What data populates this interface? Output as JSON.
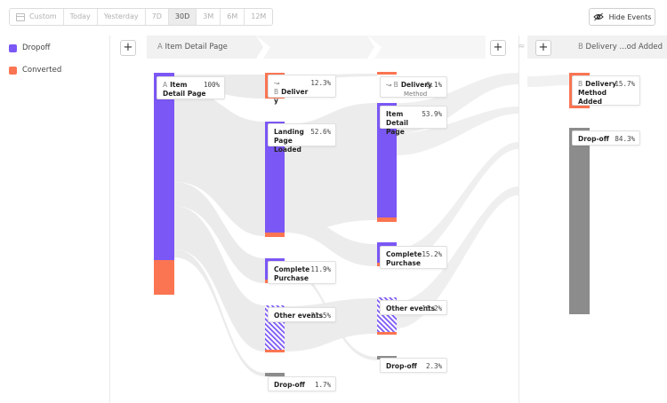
{
  "toolbar": {
    "range_buttons": [
      "Custom",
      "Today",
      "Yesterday",
      "7D",
      "30D",
      "3M",
      "6M",
      "12M"
    ],
    "active_range": "30D",
    "hide_events_label": "Hide Events"
  },
  "legend": [
    {
      "label": "Dropoff",
      "color": "#7b57f5"
    },
    {
      "label": "Converted",
      "color": "#fb7552"
    }
  ],
  "steps": {
    "step1_prefix": "A",
    "step1_label": "Item Detail Page",
    "step2_prefix": "B",
    "step2_label": "Delivery ...od Added"
  },
  "colors": {
    "dropoff": "#7b57f5",
    "converted": "#fb7552",
    "flow": "#e6e6e6",
    "dropoff_gray": "#8c8c8c"
  },
  "columns": [
    {
      "nodes": [
        {
          "prefix": "A",
          "name": "Item Detail Page",
          "pct": "100%",
          "pct_value": 100.0,
          "converted_fraction": 0.157
        }
      ]
    },
    {
      "nodes": [
        {
          "prefix": "↝ B",
          "name": "Deliver y",
          "pct": "12.3%",
          "pct_value": 12.3
        },
        {
          "name": "Landing Page Loaded",
          "pct": "52.6%",
          "pct_value": 52.6
        },
        {
          "name": "Complete Purchase",
          "pct": "11.9%",
          "pct_value": 11.9
        },
        {
          "name": "Other events",
          "pct": "21.5%",
          "pct_value": 21.5
        },
        {
          "name": "Drop-off",
          "pct": "1.7%",
          "pct_value": 1.7
        }
      ]
    },
    {
      "nodes": [
        {
          "prefix": "↝ B",
          "name": "Delivery",
          "sub": "Method",
          "pct": "0.1%",
          "pct_value": 0.1
        },
        {
          "name": "Item Detail Page",
          "pct": "53.9%",
          "pct_value": 53.9
        },
        {
          "name": "Complete Purchase",
          "pct": "15.2%",
          "pct_value": 15.2
        },
        {
          "name": "Other events",
          "pct": "16.2%",
          "pct_value": 16.2
        },
        {
          "name": "Drop-off",
          "pct": "2.3%",
          "pct_value": 2.3
        }
      ]
    },
    {
      "nodes": [
        {
          "prefix": "B",
          "name": "Delivery Method Added",
          "pct": "15.7%",
          "pct_value": 15.7
        },
        {
          "name": "Drop-off",
          "pct": "84.3%",
          "pct_value": 84.3
        }
      ]
    }
  ]
}
